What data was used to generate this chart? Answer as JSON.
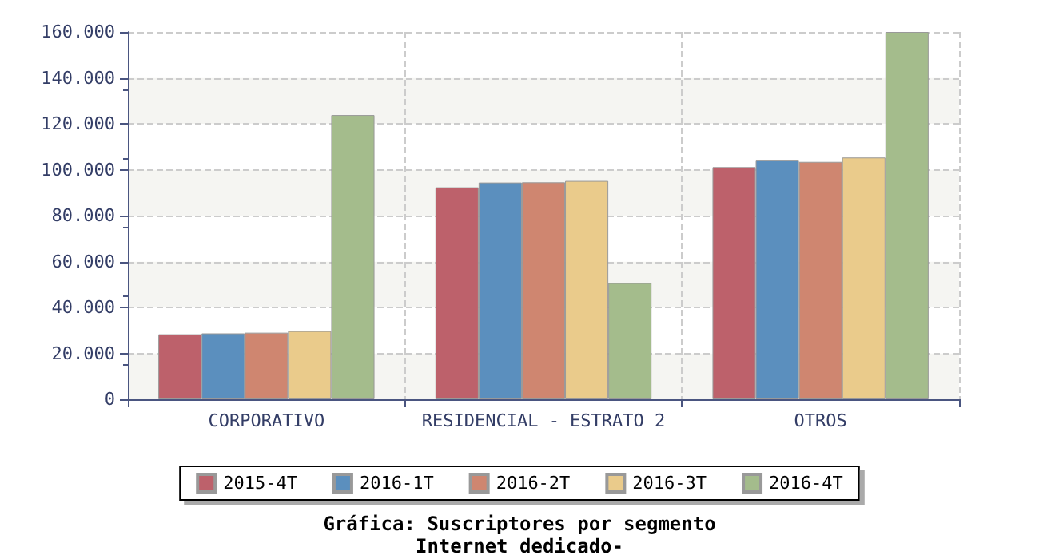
{
  "chart_data": {
    "type": "bar",
    "title": "Gráfica: Suscriptores por segmento",
    "subtitle": "Internet dedicado-",
    "categories": [
      "CORPORATIVO",
      "RESIDENCIAL - ESTRATO 2",
      "OTROS"
    ],
    "series": [
      {
        "name": "2015-4T",
        "color": "#bd616b",
        "values": [
          28300,
          92300,
          101100
        ]
      },
      {
        "name": "2016-1T",
        "color": "#5b8fbe",
        "values": [
          28700,
          94400,
          104300
        ]
      },
      {
        "name": "2016-2T",
        "color": "#cf8670",
        "values": [
          29000,
          94500,
          103400
        ]
      },
      {
        "name": "2016-3T",
        "color": "#eacb8b",
        "values": [
          29700,
          95100,
          105300
        ]
      },
      {
        "name": "2016-4T",
        "color": "#a4bc8c",
        "values": [
          123800,
          50600,
          160000
        ]
      }
    ],
    "ylim": [
      0,
      160000
    ],
    "yticks": [
      {
        "value": 0,
        "label": "0"
      },
      {
        "value": 20000,
        "label": "20.000"
      },
      {
        "value": 40000,
        "label": "40.000"
      },
      {
        "value": 60000,
        "label": "60.000"
      },
      {
        "value": 80000,
        "label": "80.000"
      },
      {
        "value": 100000,
        "label": "100.000"
      },
      {
        "value": 120000,
        "label": "120.000"
      },
      {
        "value": 140000,
        "label": "140.000"
      },
      {
        "value": 160000,
        "label": "160.000"
      }
    ],
    "grid": true,
    "legend": "bottom"
  }
}
